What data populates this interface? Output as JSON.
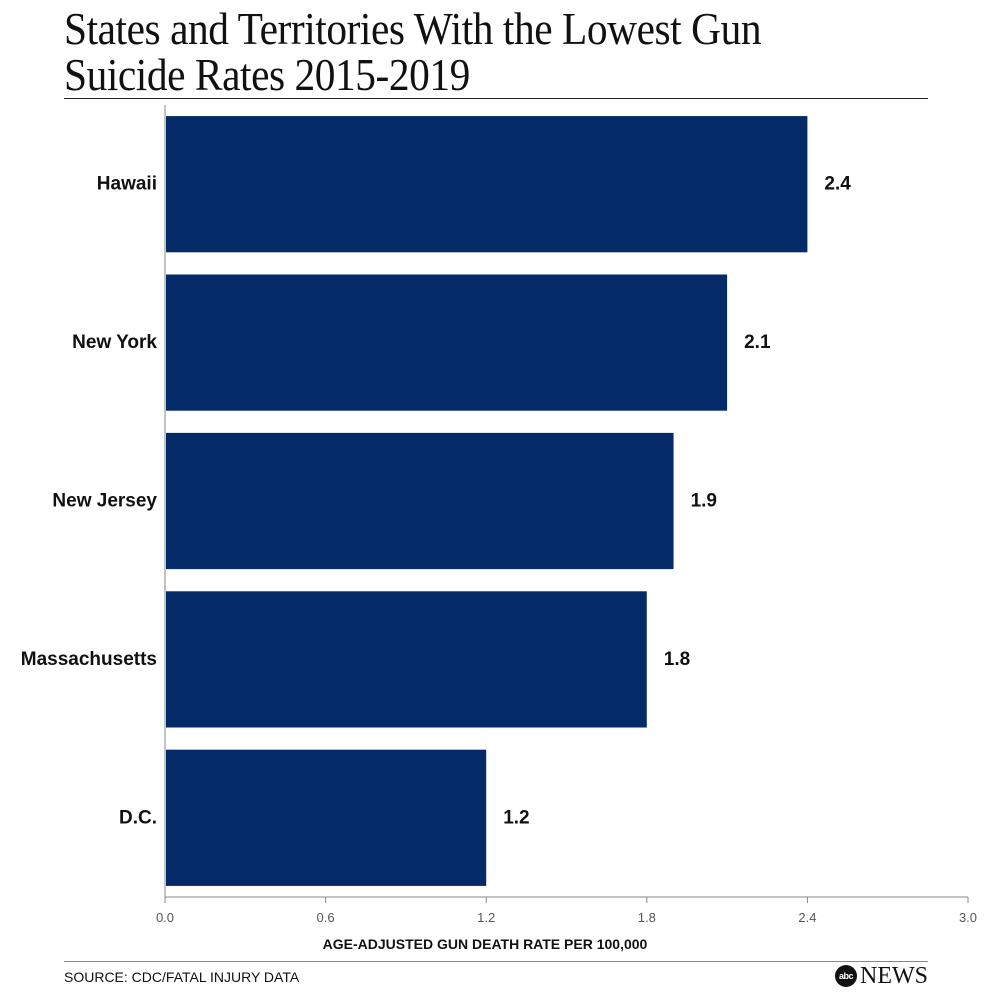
{
  "title": "States and Territories With the Lowest Gun Suicide Rates 2015-2019",
  "source": "SOURCE: CDC/FATAL INJURY DATA",
  "logo": {
    "mark": "abc",
    "word": "NEWS"
  },
  "colors": {
    "bar": "#042a68",
    "axis": "#888888",
    "text": "#111111"
  },
  "chart_data": {
    "type": "bar",
    "orientation": "horizontal",
    "categories": [
      "Hawaii",
      "New York",
      "New Jersey",
      "Massachusetts",
      "D.C."
    ],
    "values": [
      2.4,
      2.1,
      1.9,
      1.8,
      1.2
    ],
    "value_labels": [
      "2.4",
      "2.1",
      "1.9",
      "1.8",
      "1.2"
    ],
    "xlabel": "AGE-ADJUSTED GUN DEATH RATE PER 100,000",
    "xlim": [
      0,
      3.0
    ],
    "xticks": [
      "0.0",
      "0.6",
      "1.2",
      "1.8",
      "2.4",
      "3.0"
    ],
    "xtick_values": [
      0,
      0.6,
      1.2,
      1.8,
      2.4,
      3.0
    ],
    "grid": false,
    "legend": "none"
  }
}
